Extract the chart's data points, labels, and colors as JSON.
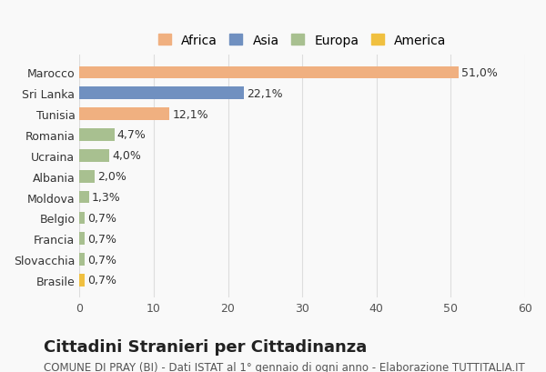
{
  "categories": [
    "Brasile",
    "Slovacchia",
    "Francia",
    "Belgio",
    "Moldova",
    "Albania",
    "Ucraina",
    "Romania",
    "Tunisia",
    "Sri Lanka",
    "Marocco"
  ],
  "values": [
    0.7,
    0.7,
    0.7,
    0.7,
    1.3,
    2.0,
    4.0,
    4.7,
    12.1,
    22.1,
    51.0
  ],
  "labels": [
    "0,7%",
    "0,7%",
    "0,7%",
    "0,7%",
    "1,3%",
    "2,0%",
    "4,0%",
    "4,7%",
    "12,1%",
    "22,1%",
    "51,0%"
  ],
  "colors": [
    "#f0c040",
    "#a8c090",
    "#a8c090",
    "#a8c090",
    "#a8c090",
    "#a8c090",
    "#a8c090",
    "#a8c090",
    "#f0b080",
    "#7090c0",
    "#f0b080"
  ],
  "continent_colors": {
    "Africa": "#f0b080",
    "Asia": "#7090c0",
    "Europa": "#a8c090",
    "America": "#f0c040"
  },
  "legend_labels": [
    "Africa",
    "Asia",
    "Europa",
    "America"
  ],
  "title": "Cittadini Stranieri per Cittadinanza",
  "subtitle": "COMUNE DI PRAY (BI) - Dati ISTAT al 1° gennaio di ogni anno - Elaborazione TUTTITALIA.IT",
  "xlim": [
    0,
    60
  ],
  "xticks": [
    0,
    10,
    20,
    30,
    40,
    50,
    60
  ],
  "bg_color": "#f9f9f9",
  "bar_bg_color": "#ffffff",
  "title_fontsize": 13,
  "subtitle_fontsize": 8.5,
  "label_fontsize": 9,
  "tick_fontsize": 9,
  "legend_fontsize": 10
}
